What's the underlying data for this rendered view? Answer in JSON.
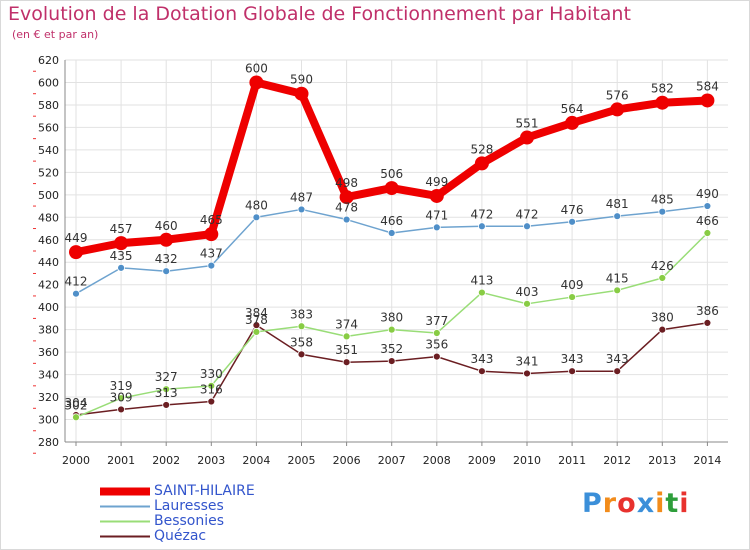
{
  "header": {
    "title": "Evolution de la Dotation Globale de Fonctionnement par Habitant",
    "subtitle": "(en € et par an)"
  },
  "logo": {
    "text": "Proxiti",
    "colors": [
      "#3b8fd9",
      "#f28c1b",
      "#e8322e",
      "#3b8fd9",
      "#f28c1b",
      "#2e9e3b",
      "#e8322e"
    ]
  },
  "chart_data": {
    "type": "line",
    "title": "Evolution de la Dotation Globale de Fonctionnement par Habitant",
    "subtitle": "(en € et par an)",
    "xlabel": "",
    "ylabel": "",
    "x": [
      "2000",
      "2001",
      "2002",
      "2003",
      "2004",
      "2005",
      "2006",
      "2007",
      "2008",
      "2009",
      "2010",
      "2011",
      "2012",
      "2013",
      "2014"
    ],
    "ylim": [
      280,
      620
    ],
    "yticks": [
      280,
      300,
      320,
      340,
      360,
      380,
      400,
      420,
      440,
      460,
      480,
      500,
      520,
      540,
      560,
      580,
      600,
      620
    ],
    "grid": true,
    "legend_position": "bottom-left",
    "series": [
      {
        "name": "Quézac",
        "color": "#6b1e22",
        "marker": "#6b1e22",
        "width": 1.5,
        "radius": 3.5,
        "values": [
          304,
          309,
          313,
          316,
          384,
          358,
          351,
          352,
          356,
          343,
          341,
          343,
          343,
          380,
          386
        ]
      },
      {
        "name": "Bessonies",
        "color": "#99dd77",
        "marker": "#88cc44",
        "width": 1.5,
        "radius": 3.5,
        "values": [
          302,
          319,
          327,
          330,
          378,
          383,
          374,
          380,
          377,
          413,
          403,
          409,
          415,
          426,
          466
        ]
      },
      {
        "name": "Lauresses",
        "color": "#6ea3cf",
        "marker": "#4f8fc8",
        "width": 1.5,
        "radius": 3.5,
        "values": [
          412,
          435,
          432,
          437,
          480,
          487,
          478,
          466,
          471,
          472,
          472,
          476,
          481,
          485,
          490
        ]
      },
      {
        "name": "SAINT-HILAIRE",
        "color": "#ee0000",
        "marker": "#ee0000",
        "width": 8,
        "radius": 7,
        "values": [
          449,
          457,
          460,
          465,
          600,
          590,
          498,
          506,
          499,
          528,
          551,
          564,
          576,
          582,
          584
        ]
      }
    ],
    "legend": [
      "SAINT-HILAIRE",
      "Lauresses",
      "Bessonies",
      "Quézac"
    ]
  }
}
